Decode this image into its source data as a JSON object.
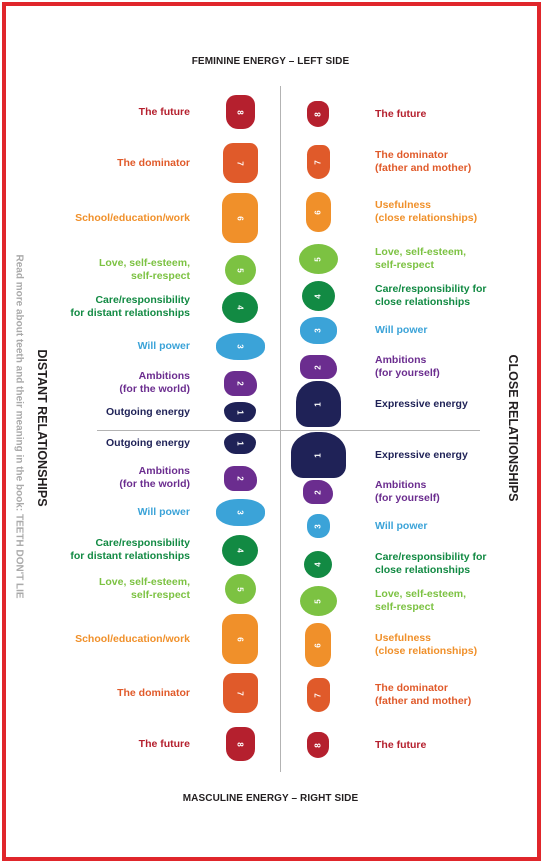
{
  "colors": {
    "frame": "#e0262b",
    "t8": "#b5202e",
    "t7": "#e05a2a",
    "t6": "#f0902a",
    "t5": "#7cc242",
    "t4": "#128a43",
    "t3": "#3ba3d8",
    "t2": "#6b2d8f",
    "t1": "#1f2257"
  },
  "titles": {
    "top": "FEMININE ENERGY – LEFT SIDE",
    "bottom": "MASCULINE ENERGY – RIGHT SIDE",
    "left_side": "DISTANT RELATIONSHIPS",
    "right_side": "CLOSE RELATIONSHIPS",
    "side_note": "Read more about teeth and their meaning in the book: TEETH DON'T LIE"
  },
  "left_upper": [
    {
      "num": "8",
      "label": "The future"
    },
    {
      "num": "7",
      "label": "The dominator"
    },
    {
      "num": "6",
      "label": "School/education/work"
    },
    {
      "num": "5",
      "label": "Love, self-esteem,\nself-respect"
    },
    {
      "num": "4",
      "label": "Care/responsibility\nfor distant relationships"
    },
    {
      "num": "3",
      "label": "Will power"
    },
    {
      "num": "2",
      "label": "Ambitions\n(for the world)"
    },
    {
      "num": "1",
      "label": "Outgoing energy"
    }
  ],
  "left_lower": [
    {
      "num": "1",
      "label": "Outgoing energy"
    },
    {
      "num": "2",
      "label": "Ambitions\n(for the world)"
    },
    {
      "num": "3",
      "label": "Will power"
    },
    {
      "num": "4",
      "label": "Care/responsibility\nfor distant relationships"
    },
    {
      "num": "5",
      "label": "Love, self-esteem,\nself-respect"
    },
    {
      "num": "6",
      "label": "School/education/work"
    },
    {
      "num": "7",
      "label": "The dominator"
    },
    {
      "num": "8",
      "label": "The future"
    }
  ],
  "right_upper": [
    {
      "num": "8",
      "label": "The future"
    },
    {
      "num": "7",
      "label": "The dominator\n(father and mother)"
    },
    {
      "num": "6",
      "label": "Usefulness\n(close relationships)"
    },
    {
      "num": "5",
      "label": "Love, self-esteem,\nself-respect"
    },
    {
      "num": "4",
      "label": "Care/responsibility for\nclose relationships"
    },
    {
      "num": "3",
      "label": "Will power"
    },
    {
      "num": "2",
      "label": "Ambitions\n(for yourself)"
    },
    {
      "num": "1",
      "label": "Expressive energy"
    }
  ],
  "right_lower": [
    {
      "num": "1",
      "label": "Expressive energy"
    },
    {
      "num": "2",
      "label": "Ambitions\n(for yourself)"
    },
    {
      "num": "3",
      "label": "Will power"
    },
    {
      "num": "4",
      "label": "Care/responsibility for\nclose relationships"
    },
    {
      "num": "5",
      "label": "Love, self-esteem,\nself-respect"
    },
    {
      "num": "6",
      "label": "Usefulness\n(close relationships)"
    },
    {
      "num": "7",
      "label": "The dominator\n(father and mother)"
    },
    {
      "num": "8",
      "label": "The future"
    }
  ]
}
